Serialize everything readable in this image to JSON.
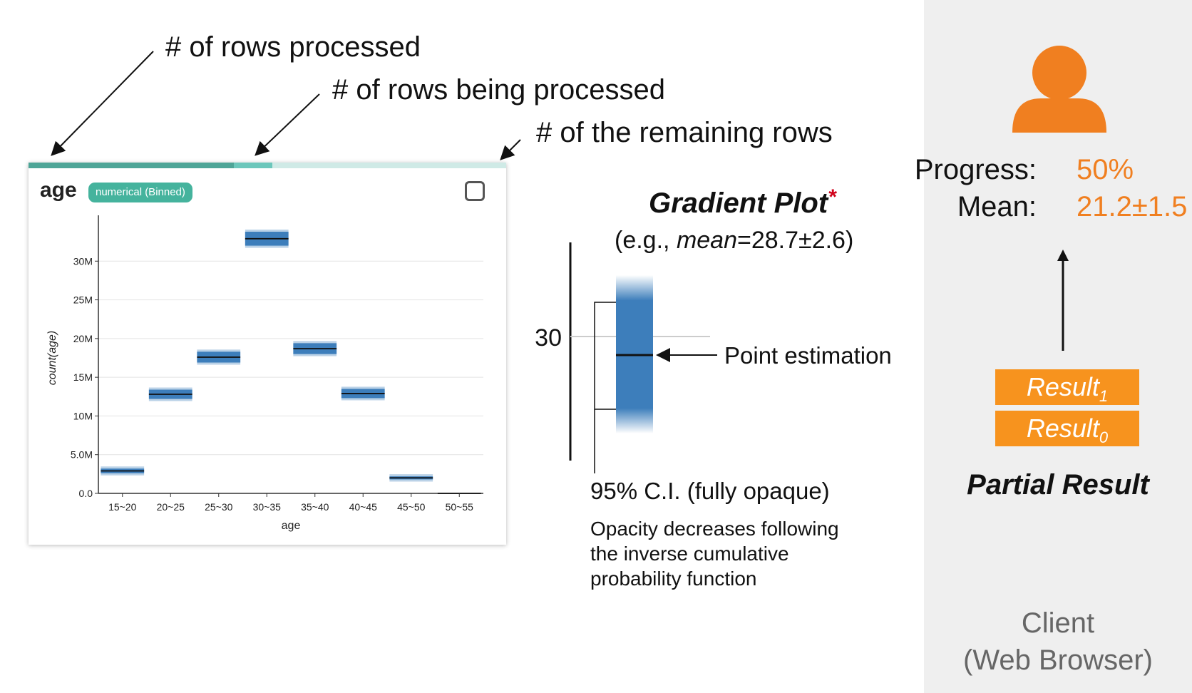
{
  "annotations": {
    "rows_processed": "# of rows processed",
    "rows_being_processed": "# of rows being processed",
    "remaining_rows": "# of the remaining rows"
  },
  "card": {
    "title": "age",
    "badge": "numerical (Binned)",
    "progress_done_fraction": 0.43,
    "progress_in_flight_fraction": 0.08
  },
  "chart_data": {
    "type": "bar",
    "title": "",
    "xlabel": "age",
    "ylabel": "count(age)",
    "ylim": [
      0,
      35000000
    ],
    "y_ticks": [
      "0.0",
      "5.0M",
      "10M",
      "15M",
      "20M",
      "25M",
      "30M"
    ],
    "y_tick_values": [
      0,
      5000000,
      10000000,
      15000000,
      20000000,
      25000000,
      30000000
    ],
    "categories": [
      "15~20",
      "20~25",
      "25~30",
      "30~35",
      "35~40",
      "40~45",
      "45~50",
      "50~55"
    ],
    "values": [
      2900000,
      12800000,
      17600000,
      32900000,
      18700000,
      12900000,
      2000000,
      0
    ],
    "ci_half_width": [
      300000,
      600000,
      700000,
      900000,
      700000,
      600000,
      200000,
      0
    ],
    "mark": "gradient band with point estimate line",
    "grid": true,
    "color": "#3d7ebb"
  },
  "gradient_plot": {
    "title": "Gradient Plot",
    "asterisk": "*",
    "example_prefix": "(e.g., ",
    "example_var": "mean",
    "example_rest": "=28.7±2.6)",
    "axis_label": "30",
    "point_label": "Point estimation",
    "ci_label": "95% C.I. (fully opaque)",
    "note_lines": [
      "Opacity decreases following",
      "the inverse cumulative",
      "probability function"
    ],
    "band_color": "#3d7ebb"
  },
  "client": {
    "progress_label": "Progress:",
    "progress_value": "50%",
    "mean_label": "Mean:",
    "mean_value": "21.2±1.5",
    "result_1": "Result",
    "result_1_sub": "1",
    "result_0": "Result",
    "result_0_sub": "0",
    "partial_result": "Partial Result",
    "client_line1": "Client",
    "client_line2": "(Web Browser)",
    "user_icon_color": "#f07f20",
    "accent_color": "#f7931e"
  }
}
